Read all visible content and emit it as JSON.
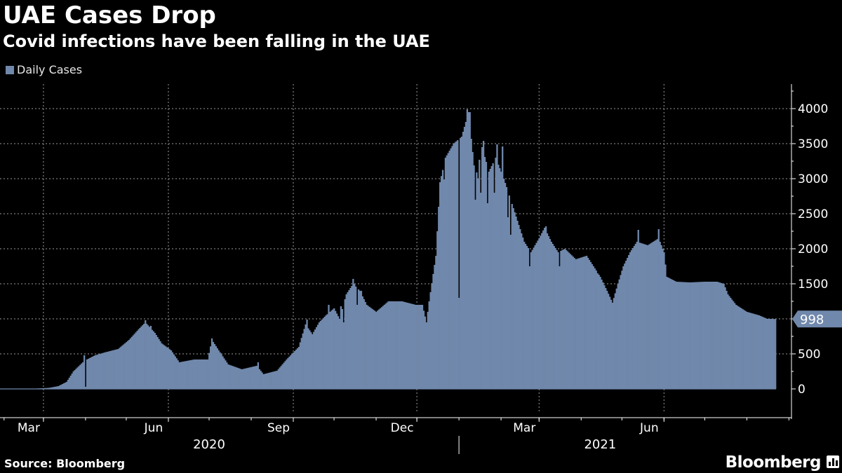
{
  "title": "UAE Cases Drop",
  "subtitle": "Covid infections have been falling in the UAE",
  "legend": {
    "label": "Daily Cases"
  },
  "source": "Source: Bloomberg",
  "brand": "Bloomberg",
  "colors": {
    "series": "#7088ab",
    "background": "#000000",
    "text": "#ffffff",
    "grid": "#9a9a9a"
  },
  "chart_data": {
    "type": "bar",
    "title": "UAE Cases Drop",
    "subtitle": "Covid infections have been falling in the UAE",
    "xlabel": "",
    "ylabel": "",
    "ylim": [
      -400,
      4400
    ],
    "y_ticks": [
      0,
      500,
      1000,
      1500,
      2000,
      2500,
      3000,
      3500,
      4000
    ],
    "y_tick_labels": [
      "0",
      "500",
      "1000",
      "1500",
      "2000",
      "2500",
      "3000",
      "3500",
      "4000"
    ],
    "grid": true,
    "legend_position": "top-left",
    "x_start": "2020-01-29",
    "x_end": "2021-08-22",
    "x_ticks": [
      {
        "date": "2020-03-01",
        "label": "Mar"
      },
      {
        "date": "2020-06-01",
        "label": "Jun"
      },
      {
        "date": "2020-09-01",
        "label": "Sep"
      },
      {
        "date": "2020-12-01",
        "label": "Dec"
      },
      {
        "date": "2021-03-01",
        "label": "Mar"
      },
      {
        "date": "2021-06-01",
        "label": "Jun"
      }
    ],
    "years": [
      {
        "label": "2020",
        "center": "2020-07-01"
      },
      {
        "label": "2021",
        "center": "2021-04-15"
      }
    ],
    "year_divider": "2021-01-01",
    "last_value": 998,
    "last_value_label": "998",
    "series": [
      {
        "name": "Daily Cases",
        "keypoints": [
          [
            "2020-01-29",
            0
          ],
          [
            "2020-02-20",
            0
          ],
          [
            "2020-03-05",
            15
          ],
          [
            "2020-03-12",
            40
          ],
          [
            "2020-03-18",
            100
          ],
          [
            "2020-03-23",
            250
          ],
          [
            "2020-03-31",
            400
          ],
          [
            "2020-04-08",
            480
          ],
          [
            "2020-04-15",
            520
          ],
          [
            "2020-04-25",
            570
          ],
          [
            "2020-05-03",
            700
          ],
          [
            "2020-05-10",
            850
          ],
          [
            "2020-05-15",
            950
          ],
          [
            "2020-05-22",
            800
          ],
          [
            "2020-05-27",
            650
          ],
          [
            "2020-06-03",
            550
          ],
          [
            "2020-06-09",
            380
          ],
          [
            "2020-06-20",
            420
          ],
          [
            "2020-06-30",
            420
          ],
          [
            "2020-07-03",
            700
          ],
          [
            "2020-07-08",
            550
          ],
          [
            "2020-07-15",
            350
          ],
          [
            "2020-07-25",
            280
          ],
          [
            "2020-08-05",
            330
          ],
          [
            "2020-08-10",
            210
          ],
          [
            "2020-08-20",
            260
          ],
          [
            "2020-08-27",
            420
          ],
          [
            "2020-09-05",
            600
          ],
          [
            "2020-09-10",
            920
          ],
          [
            "2020-09-15",
            780
          ],
          [
            "2020-09-20",
            950
          ],
          [
            "2020-09-25",
            1050
          ],
          [
            "2020-10-01",
            1150
          ],
          [
            "2020-10-05",
            1000
          ],
          [
            "2020-10-10",
            1350
          ],
          [
            "2020-10-15",
            1500
          ],
          [
            "2020-10-20",
            1400
          ],
          [
            "2020-10-25",
            1200
          ],
          [
            "2020-11-01",
            1100
          ],
          [
            "2020-11-10",
            1250
          ],
          [
            "2020-11-20",
            1250
          ],
          [
            "2020-11-30",
            1200
          ],
          [
            "2020-12-05",
            1200
          ],
          [
            "2020-12-08",
            950
          ],
          [
            "2020-12-10",
            1250
          ],
          [
            "2020-12-15",
            1900
          ],
          [
            "2020-12-18",
            2950
          ],
          [
            "2020-12-22",
            3300
          ],
          [
            "2020-12-28",
            3500
          ],
          [
            "2021-01-03",
            3600
          ],
          [
            "2021-01-08",
            3950
          ],
          [
            "2021-01-13",
            3000
          ],
          [
            "2021-01-18",
            3450
          ],
          [
            "2021-01-23",
            3100
          ],
          [
            "2021-01-28",
            3300
          ],
          [
            "2021-02-03",
            3000
          ],
          [
            "2021-02-08",
            2700
          ],
          [
            "2021-02-13",
            2400
          ],
          [
            "2021-02-18",
            2100
          ],
          [
            "2021-02-23",
            1950
          ],
          [
            "2021-03-01",
            2150
          ],
          [
            "2021-03-05",
            2300
          ],
          [
            "2021-03-10",
            2100
          ],
          [
            "2021-03-15",
            1950
          ],
          [
            "2021-03-20",
            2000
          ],
          [
            "2021-03-28",
            1850
          ],
          [
            "2021-04-05",
            1900
          ],
          [
            "2021-04-10",
            1750
          ],
          [
            "2021-04-15",
            1600
          ],
          [
            "2021-04-20",
            1400
          ],
          [
            "2021-04-24",
            1230
          ],
          [
            "2021-04-28",
            1500
          ],
          [
            "2021-05-02",
            1750
          ],
          [
            "2021-05-07",
            1950
          ],
          [
            "2021-05-12",
            2100
          ],
          [
            "2021-05-20",
            2050
          ],
          [
            "2021-05-28",
            2150
          ],
          [
            "2021-06-01",
            1950
          ],
          [
            "2021-06-03",
            1600
          ],
          [
            "2021-06-10",
            1530
          ],
          [
            "2021-06-20",
            1520
          ],
          [
            "2021-07-01",
            1530
          ],
          [
            "2021-07-10",
            1530
          ],
          [
            "2021-07-15",
            1500
          ],
          [
            "2021-07-18",
            1350
          ],
          [
            "2021-07-24",
            1200
          ],
          [
            "2021-08-01",
            1100
          ],
          [
            "2021-08-10",
            1050
          ],
          [
            "2021-08-16",
            1000
          ],
          [
            "2021-08-22",
            998
          ]
        ],
        "spikes": [
          [
            "2020-03-31",
            480
          ],
          [
            "2020-05-15",
            980
          ],
          [
            "2020-05-19",
            900
          ],
          [
            "2020-07-03",
            720
          ],
          [
            "2020-08-06",
            380
          ],
          [
            "2020-09-11",
            990
          ],
          [
            "2020-09-27",
            1200
          ],
          [
            "2020-10-06",
            1180
          ],
          [
            "2020-10-15",
            1570
          ],
          [
            "2020-10-16",
            1500
          ],
          [
            "2020-10-21",
            1400
          ],
          [
            "2020-12-21",
            2990
          ],
          [
            "2021-01-07",
            3990
          ],
          [
            "2021-01-09",
            3950
          ],
          [
            "2021-01-19",
            3540
          ],
          [
            "2021-01-29",
            3490
          ],
          [
            "2021-02-02",
            3460
          ],
          [
            "2021-03-06",
            2320
          ],
          [
            "2021-05-13",
            2270
          ],
          [
            "2021-05-28",
            2280
          ]
        ],
        "dips": [
          [
            "2020-04-01",
            30
          ],
          [
            "2020-10-08",
            950
          ],
          [
            "2020-10-18",
            1200
          ],
          [
            "2021-01-01",
            1300
          ],
          [
            "2021-01-13",
            2700
          ],
          [
            "2021-01-15",
            3000
          ],
          [
            "2021-01-17",
            2800
          ],
          [
            "2021-01-22",
            2650
          ],
          [
            "2021-01-27",
            2800
          ],
          [
            "2021-02-06",
            2450
          ],
          [
            "2021-02-08",
            2200
          ],
          [
            "2021-02-22",
            1750
          ],
          [
            "2021-03-16",
            1750
          ],
          [
            "2021-04-13",
            1650
          ]
        ]
      }
    ]
  }
}
